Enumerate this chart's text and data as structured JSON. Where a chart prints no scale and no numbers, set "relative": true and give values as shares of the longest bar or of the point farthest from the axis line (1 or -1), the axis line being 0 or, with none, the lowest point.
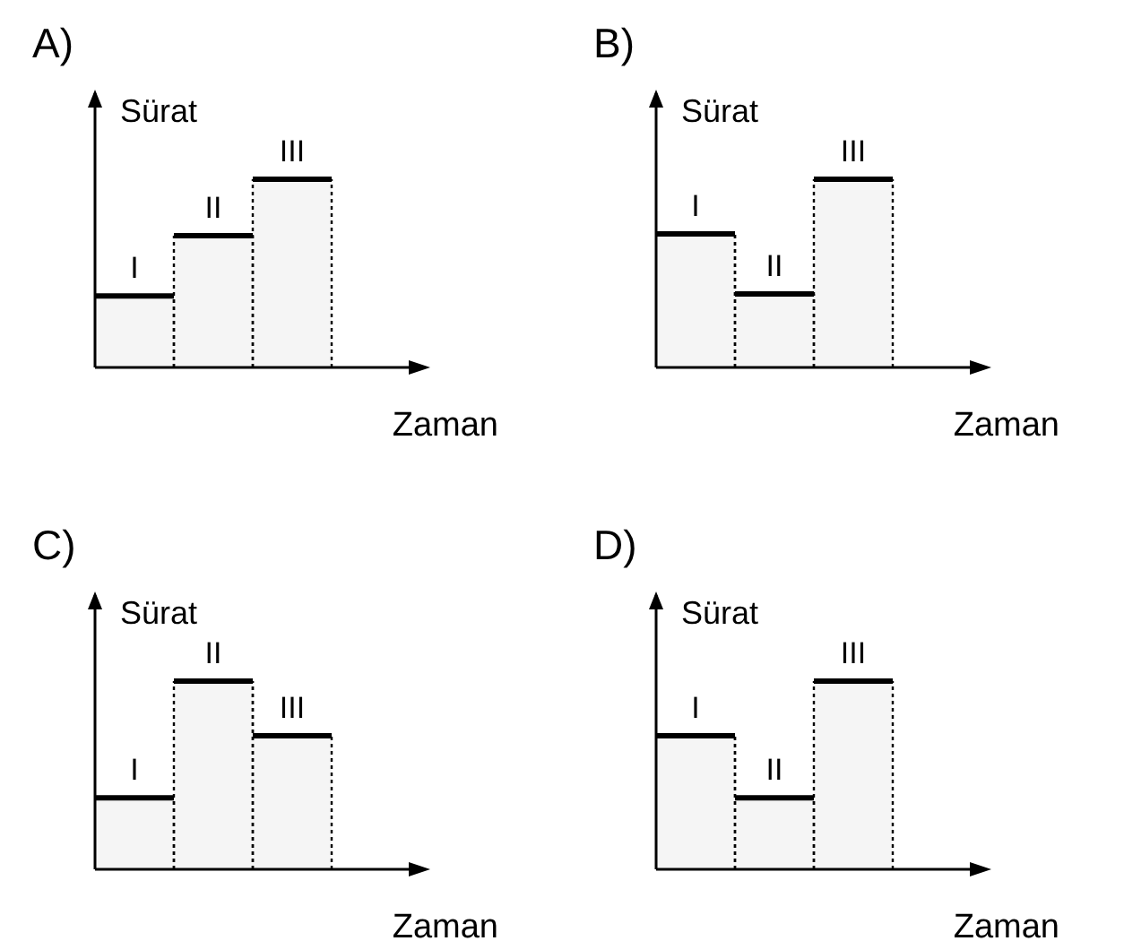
{
  "chart_data": [
    {
      "type": "bar",
      "title": "A)",
      "ylabel": "Sürat",
      "xlabel": "Zaman",
      "categories": [
        null,
        null,
        null
      ],
      "values": [
        0.38,
        0.7,
        1
      ],
      "annotations": [
        "I",
        "II",
        "III"
      ],
      "color": "#000000",
      "relative": true
    },
    {
      "type": "bar",
      "title": "B)",
      "ylabel": "Sürat",
      "xlabel": "Zaman",
      "categories": [
        null,
        null,
        null
      ],
      "values": [
        0.71,
        0.39,
        1
      ],
      "annotations": [
        "I",
        "II",
        "III"
      ],
      "color": "#000000",
      "relative": true
    },
    {
      "type": "bar",
      "title": "C)",
      "ylabel": "Sürat",
      "xlabel": "Zaman",
      "categories": [
        null,
        null,
        null
      ],
      "values": [
        0.38,
        1,
        0.71
      ],
      "annotations": [
        "I",
        "II",
        "III"
      ],
      "color": "#000000",
      "relative": true
    },
    {
      "type": "bar",
      "title": "D)",
      "ylabel": "Sürat",
      "xlabel": "Zaman",
      "categories": [
        null,
        null,
        null
      ],
      "values": [
        0.71,
        0.38,
        1
      ],
      "annotations": [
        "I",
        "II",
        "III"
      ],
      "color": "#000000",
      "relative": true
    }
  ]
}
